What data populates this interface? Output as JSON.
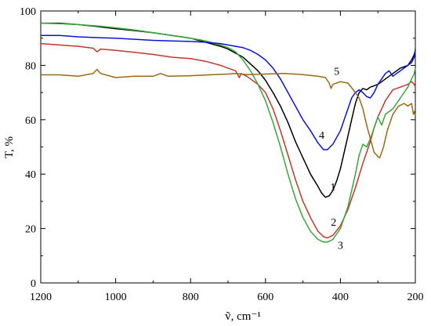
{
  "chart_data": {
    "type": "line",
    "xlabel": "ṽ, cm⁻¹",
    "ylabel": "T, %",
    "xlim": [
      1200,
      200
    ],
    "ylim": [
      0,
      100
    ],
    "x_reversed": true,
    "x_ticks": [
      1200,
      1000,
      800,
      600,
      400,
      200
    ],
    "y_ticks": [
      0,
      20,
      40,
      60,
      80,
      100
    ],
    "grid": false,
    "legend": "none",
    "series": [
      {
        "name": "1",
        "color": "#000000",
        "label_at": [
          420,
          34
        ],
        "points": [
          [
            1200,
            95.5
          ],
          [
            1150,
            95.5
          ],
          [
            1100,
            95
          ],
          [
            1050,
            94.3
          ],
          [
            1000,
            93.5
          ],
          [
            950,
            92.8
          ],
          [
            900,
            92
          ],
          [
            850,
            91
          ],
          [
            800,
            90
          ],
          [
            760,
            88.5
          ],
          [
            720,
            87
          ],
          [
            700,
            86
          ],
          [
            680,
            84.5
          ],
          [
            660,
            83
          ],
          [
            640,
            80.5
          ],
          [
            620,
            78
          ],
          [
            600,
            74.5
          ],
          [
            580,
            70
          ],
          [
            560,
            65
          ],
          [
            540,
            59
          ],
          [
            520,
            52
          ],
          [
            500,
            46
          ],
          [
            480,
            40
          ],
          [
            460,
            35.5
          ],
          [
            450,
            33
          ],
          [
            440,
            31.5
          ],
          [
            430,
            32
          ],
          [
            420,
            34
          ],
          [
            410,
            37.5
          ],
          [
            400,
            42
          ],
          [
            390,
            48
          ],
          [
            380,
            54
          ],
          [
            370,
            60
          ],
          [
            360,
            66
          ],
          [
            350,
            70
          ],
          [
            340,
            71.5
          ],
          [
            330,
            71
          ],
          [
            320,
            72
          ],
          [
            300,
            73
          ],
          [
            280,
            75
          ],
          [
            260,
            77
          ],
          [
            240,
            79
          ],
          [
            220,
            80
          ],
          [
            210,
            82
          ],
          [
            203,
            84
          ],
          [
            200,
            85.5
          ]
        ]
      },
      {
        "name": "2",
        "color": "#c0392b",
        "label_at": [
          418,
          21
        ],
        "points": [
          [
            1200,
            88
          ],
          [
            1150,
            87.5
          ],
          [
            1100,
            87
          ],
          [
            1060,
            86.3
          ],
          [
            1050,
            85
          ],
          [
            1040,
            86
          ],
          [
            1000,
            85.5
          ],
          [
            950,
            84.8
          ],
          [
            900,
            84
          ],
          [
            850,
            83
          ],
          [
            800,
            82.5
          ],
          [
            760,
            81.5
          ],
          [
            720,
            80
          ],
          [
            700,
            79
          ],
          [
            680,
            78
          ],
          [
            670,
            75.5
          ],
          [
            665,
            77
          ],
          [
            650,
            76
          ],
          [
            620,
            73
          ],
          [
            600,
            70
          ],
          [
            580,
            64
          ],
          [
            560,
            56
          ],
          [
            540,
            47
          ],
          [
            520,
            38
          ],
          [
            500,
            30
          ],
          [
            480,
            24
          ],
          [
            460,
            19
          ],
          [
            445,
            17
          ],
          [
            435,
            16.5
          ],
          [
            420,
            17.5
          ],
          [
            400,
            21
          ],
          [
            380,
            27
          ],
          [
            360,
            35
          ],
          [
            340,
            44
          ],
          [
            320,
            52
          ],
          [
            310,
            57
          ],
          [
            300,
            61
          ],
          [
            280,
            67
          ],
          [
            260,
            71
          ],
          [
            240,
            72
          ],
          [
            220,
            73
          ],
          [
            210,
            74
          ],
          [
            203,
            73
          ],
          [
            200,
            72
          ]
        ]
      },
      {
        "name": "3",
        "color": "#3aa63a",
        "label_at": [
          400,
          12.5
        ],
        "points": [
          [
            1200,
            95.5
          ],
          [
            1150,
            95.3
          ],
          [
            1100,
            95
          ],
          [
            1050,
            94.5
          ],
          [
            1000,
            93.8
          ],
          [
            950,
            93
          ],
          [
            900,
            92
          ],
          [
            850,
            91
          ],
          [
            800,
            90
          ],
          [
            760,
            89
          ],
          [
            720,
            87.5
          ],
          [
            700,
            86.5
          ],
          [
            680,
            85
          ],
          [
            660,
            82
          ],
          [
            640,
            78
          ],
          [
            620,
            73
          ],
          [
            600,
            67
          ],
          [
            580,
            59
          ],
          [
            560,
            50
          ],
          [
            540,
            40
          ],
          [
            520,
            31
          ],
          [
            500,
            24
          ],
          [
            480,
            19
          ],
          [
            460,
            16
          ],
          [
            445,
            15
          ],
          [
            435,
            15
          ],
          [
            420,
            16
          ],
          [
            400,
            20
          ],
          [
            380,
            28
          ],
          [
            360,
            40
          ],
          [
            350,
            47
          ],
          [
            340,
            51
          ],
          [
            330,
            50
          ],
          [
            320,
            53
          ],
          [
            310,
            57
          ],
          [
            300,
            61
          ],
          [
            290,
            58
          ],
          [
            280,
            62
          ],
          [
            270,
            63
          ],
          [
            260,
            64
          ],
          [
            250,
            66
          ],
          [
            240,
            68
          ],
          [
            230,
            70
          ],
          [
            220,
            72
          ],
          [
            210,
            75
          ],
          [
            203,
            77
          ],
          [
            200,
            79
          ]
        ]
      },
      {
        "name": "4",
        "color": "#0a14d8",
        "label_at": [
          450,
          53
        ],
        "points": [
          [
            1200,
            91
          ],
          [
            1150,
            91
          ],
          [
            1100,
            90.5
          ],
          [
            1050,
            90.2
          ],
          [
            1000,
            90
          ],
          [
            950,
            89.6
          ],
          [
            900,
            89.2
          ],
          [
            850,
            89
          ],
          [
            800,
            88.8
          ],
          [
            760,
            88.5
          ],
          [
            720,
            88
          ],
          [
            700,
            87.5
          ],
          [
            680,
            87
          ],
          [
            660,
            86.5
          ],
          [
            640,
            85.5
          ],
          [
            620,
            84
          ],
          [
            600,
            82
          ],
          [
            580,
            79
          ],
          [
            560,
            75
          ],
          [
            540,
            70
          ],
          [
            520,
            65
          ],
          [
            500,
            60
          ],
          [
            480,
            56
          ],
          [
            460,
            51.5
          ],
          [
            445,
            49
          ],
          [
            435,
            49
          ],
          [
            420,
            51
          ],
          [
            400,
            56
          ],
          [
            390,
            60
          ],
          [
            380,
            64
          ],
          [
            370,
            68
          ],
          [
            360,
            70
          ],
          [
            350,
            71
          ],
          [
            340,
            70
          ],
          [
            330,
            68.5
          ],
          [
            320,
            68
          ],
          [
            310,
            70
          ],
          [
            300,
            73
          ],
          [
            290,
            75
          ],
          [
            280,
            77
          ],
          [
            270,
            78
          ],
          [
            260,
            76
          ],
          [
            250,
            77
          ],
          [
            240,
            78
          ],
          [
            230,
            79
          ],
          [
            220,
            80
          ],
          [
            210,
            81
          ],
          [
            203,
            83
          ],
          [
            200,
            86
          ]
        ]
      },
      {
        "name": "5",
        "color": "#9a6a12",
        "label_at": [
          410,
          76.5
        ],
        "points": [
          [
            1200,
            76.5
          ],
          [
            1150,
            76.5
          ],
          [
            1100,
            76
          ],
          [
            1060,
            77
          ],
          [
            1050,
            78.5
          ],
          [
            1040,
            77
          ],
          [
            1000,
            75.5
          ],
          [
            950,
            76
          ],
          [
            900,
            76
          ],
          [
            880,
            77
          ],
          [
            860,
            76
          ],
          [
            800,
            76.2
          ],
          [
            750,
            76.5
          ],
          [
            700,
            76.8
          ],
          [
            680,
            77
          ],
          [
            650,
            76.6
          ],
          [
            600,
            76.8
          ],
          [
            550,
            77
          ],
          [
            500,
            76.6
          ],
          [
            460,
            76
          ],
          [
            440,
            75.5
          ],
          [
            430,
            73.5
          ],
          [
            425,
            71.5
          ],
          [
            420,
            73
          ],
          [
            400,
            74
          ],
          [
            380,
            73.5
          ],
          [
            360,
            70
          ],
          [
            350,
            68
          ],
          [
            340,
            64
          ],
          [
            330,
            58
          ],
          [
            320,
            53
          ],
          [
            310,
            48
          ],
          [
            300,
            46.5
          ],
          [
            295,
            46
          ],
          [
            285,
            50
          ],
          [
            275,
            56
          ],
          [
            260,
            62
          ],
          [
            245,
            65
          ],
          [
            230,
            66
          ],
          [
            220,
            65
          ],
          [
            210,
            66
          ],
          [
            205,
            62
          ],
          [
            203,
            63
          ],
          [
            200,
            61.5
          ]
        ]
      }
    ]
  }
}
